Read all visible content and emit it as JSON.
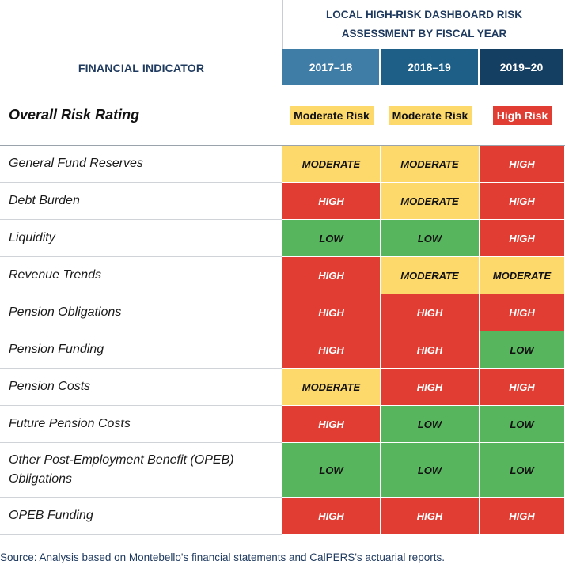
{
  "header": {
    "indicator_label": "FINANCIAL INDICATOR",
    "title": "LOCAL HIGH-RISK DASHBOARD RISK ASSESSMENT BY FISCAL YEAR",
    "years": [
      "2017–18",
      "2018–19",
      "2019–20"
    ],
    "year_colors": [
      "#3f7ca6",
      "#1d5f86",
      "#143f63"
    ]
  },
  "overall": {
    "label": "Overall Risk Rating",
    "ratings": [
      {
        "text": "Moderate Risk",
        "level": "moderate"
      },
      {
        "text": "Moderate Risk",
        "level": "moderate"
      },
      {
        "text": "High Risk",
        "level": "high"
      }
    ]
  },
  "level_colors": {
    "high": "#e23d33",
    "moderate": "#fdd86b",
    "low": "#57b55e"
  },
  "rows": [
    {
      "label": "General Fund Reserves",
      "values": [
        "MODERATE",
        "MODERATE",
        "HIGH"
      ]
    },
    {
      "label": "Debt Burden",
      "values": [
        "HIGH",
        "MODERATE",
        "HIGH"
      ]
    },
    {
      "label": "Liquidity",
      "values": [
        "LOW",
        "LOW",
        "HIGH"
      ]
    },
    {
      "label": "Revenue Trends",
      "values": [
        "HIGH",
        "MODERATE",
        "MODERATE"
      ]
    },
    {
      "label": "Pension Obligations",
      "values": [
        "HIGH",
        "HIGH",
        "HIGH"
      ]
    },
    {
      "label": "Pension Funding",
      "values": [
        "HIGH",
        "HIGH",
        "LOW"
      ]
    },
    {
      "label": "Pension Costs",
      "values": [
        "MODERATE",
        "HIGH",
        "HIGH"
      ]
    },
    {
      "label": "Future Pension Costs",
      "values": [
        "HIGH",
        "LOW",
        "LOW"
      ]
    },
    {
      "label": "Other Post-Employment Benefit (OPEB) Obligations",
      "values": [
        "LOW",
        "LOW",
        "LOW"
      ]
    },
    {
      "label": "OPEB Funding",
      "values": [
        "HIGH",
        "HIGH",
        "HIGH"
      ]
    }
  ],
  "source": "Source:  Analysis based on Montebello's financial statements and CalPERS's actuarial reports."
}
